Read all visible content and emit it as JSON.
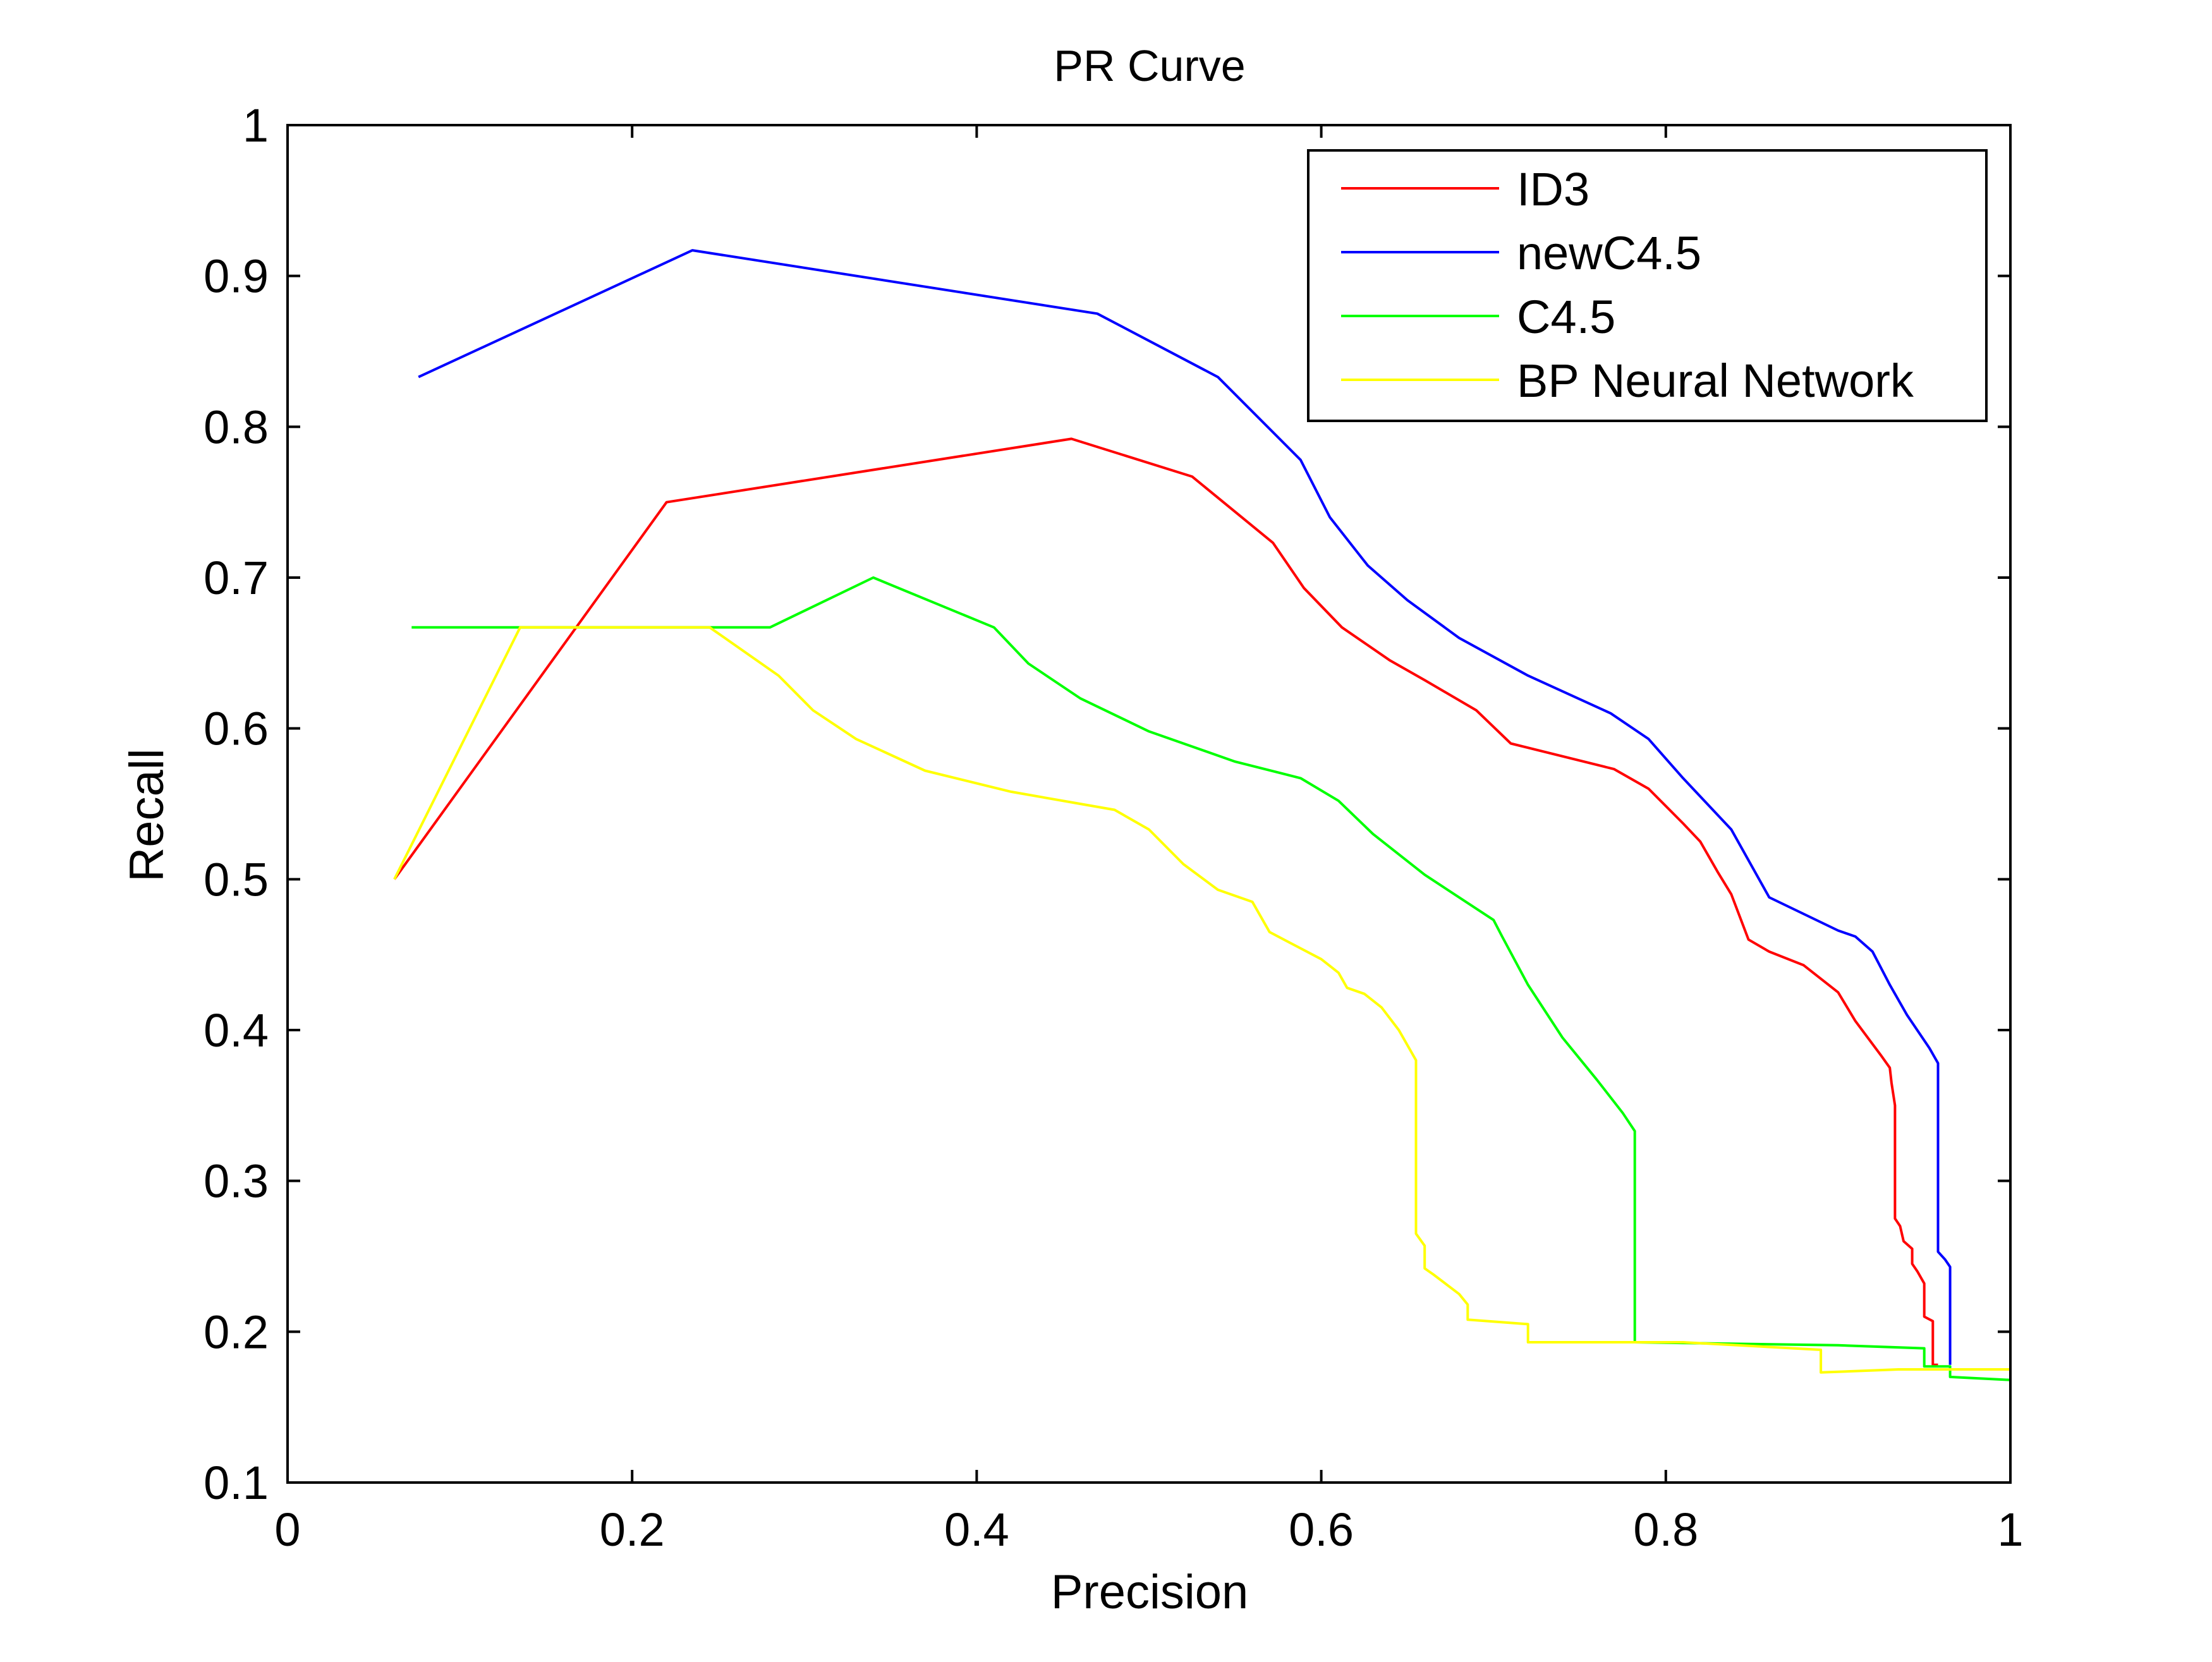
{
  "chart_data": {
    "type": "line",
    "title": "PR Curve",
    "xlabel": "Precision",
    "ylabel": "Recall",
    "xlim": [
      0,
      1
    ],
    "ylim": [
      0.1,
      1
    ],
    "x_ticks": [
      "0",
      "0.2",
      "0.4",
      "0.6",
      "0.8",
      "1"
    ],
    "y_ticks": [
      "0.1",
      "0.2",
      "0.3",
      "0.4",
      "0.5",
      "0.6",
      "0.7",
      "0.8",
      "0.9",
      "1"
    ],
    "grid": false,
    "legend_position": "top-right",
    "series": [
      {
        "name": "ID3",
        "color": "#ff0000",
        "points": [
          [
            0.062,
            0.5
          ],
          [
            0.22,
            0.75
          ],
          [
            0.455,
            0.792
          ],
          [
            0.525,
            0.767
          ],
          [
            0.572,
            0.723
          ],
          [
            0.59,
            0.693
          ],
          [
            0.612,
            0.667
          ],
          [
            0.64,
            0.645
          ],
          [
            0.66,
            0.632
          ],
          [
            0.69,
            0.612
          ],
          [
            0.71,
            0.59
          ],
          [
            0.77,
            0.573
          ],
          [
            0.79,
            0.56
          ],
          [
            0.81,
            0.537
          ],
          [
            0.82,
            0.525
          ],
          [
            0.83,
            0.505
          ],
          [
            0.838,
            0.49
          ],
          [
            0.848,
            0.46
          ],
          [
            0.86,
            0.452
          ],
          [
            0.88,
            0.443
          ],
          [
            0.9,
            0.425
          ],
          [
            0.91,
            0.406
          ],
          [
            0.925,
            0.383
          ],
          [
            0.93,
            0.375
          ],
          [
            0.931,
            0.365
          ],
          [
            0.933,
            0.35
          ],
          [
            0.933,
            0.275
          ],
          [
            0.936,
            0.27
          ],
          [
            0.938,
            0.26
          ],
          [
            0.943,
            0.255
          ],
          [
            0.943,
            0.245
          ],
          [
            0.946,
            0.24
          ],
          [
            0.95,
            0.232
          ],
          [
            0.95,
            0.21
          ],
          [
            0.955,
            0.207
          ],
          [
            0.955,
            0.178
          ],
          [
            0.958,
            0.178
          ]
        ]
      },
      {
        "name": "newC4.5",
        "color": "#0000ff",
        "points": [
          [
            0.076,
            0.833
          ],
          [
            0.235,
            0.917
          ],
          [
            0.47,
            0.875
          ],
          [
            0.54,
            0.833
          ],
          [
            0.588,
            0.778
          ],
          [
            0.605,
            0.74
          ],
          [
            0.627,
            0.708
          ],
          [
            0.65,
            0.685
          ],
          [
            0.68,
            0.66
          ],
          [
            0.72,
            0.635
          ],
          [
            0.768,
            0.61
          ],
          [
            0.79,
            0.593
          ],
          [
            0.81,
            0.567
          ],
          [
            0.838,
            0.533
          ],
          [
            0.86,
            0.488
          ],
          [
            0.9,
            0.466
          ],
          [
            0.91,
            0.462
          ],
          [
            0.92,
            0.452
          ],
          [
            0.93,
            0.43
          ],
          [
            0.94,
            0.41
          ],
          [
            0.953,
            0.388
          ],
          [
            0.958,
            0.378
          ],
          [
            0.958,
            0.253
          ],
          [
            0.962,
            0.248
          ],
          [
            0.965,
            0.243
          ],
          [
            0.965,
            0.178
          ]
        ]
      },
      {
        "name": "C4.5",
        "color": "#00ff00",
        "points": [
          [
            0.072,
            0.667
          ],
          [
            0.28,
            0.667
          ],
          [
            0.34,
            0.7
          ],
          [
            0.41,
            0.667
          ],
          [
            0.43,
            0.643
          ],
          [
            0.46,
            0.62
          ],
          [
            0.5,
            0.598
          ],
          [
            0.55,
            0.578
          ],
          [
            0.588,
            0.567
          ],
          [
            0.61,
            0.552
          ],
          [
            0.63,
            0.53
          ],
          [
            0.66,
            0.503
          ],
          [
            0.7,
            0.473
          ],
          [
            0.705,
            0.462
          ],
          [
            0.72,
            0.43
          ],
          [
            0.74,
            0.395
          ],
          [
            0.76,
            0.367
          ],
          [
            0.775,
            0.345
          ],
          [
            0.782,
            0.333
          ],
          [
            0.782,
            0.193
          ],
          [
            0.9,
            0.191
          ],
          [
            0.95,
            0.189
          ],
          [
            0.95,
            0.177
          ],
          [
            0.965,
            0.177
          ],
          [
            0.965,
            0.17
          ],
          [
            1.0,
            0.168
          ]
        ]
      },
      {
        "name": "BP Neural Network",
        "color": "#ffff00",
        "points": [
          [
            0.062,
            0.5
          ],
          [
            0.135,
            0.667
          ],
          [
            0.245,
            0.667
          ],
          [
            0.285,
            0.635
          ],
          [
            0.305,
            0.612
          ],
          [
            0.33,
            0.593
          ],
          [
            0.37,
            0.572
          ],
          [
            0.42,
            0.558
          ],
          [
            0.46,
            0.55
          ],
          [
            0.48,
            0.546
          ],
          [
            0.5,
            0.533
          ],
          [
            0.52,
            0.51
          ],
          [
            0.54,
            0.493
          ],
          [
            0.56,
            0.485
          ],
          [
            0.57,
            0.465
          ],
          [
            0.59,
            0.453
          ],
          [
            0.6,
            0.447
          ],
          [
            0.61,
            0.438
          ],
          [
            0.615,
            0.428
          ],
          [
            0.625,
            0.424
          ],
          [
            0.635,
            0.415
          ],
          [
            0.645,
            0.4
          ],
          [
            0.655,
            0.38
          ],
          [
            0.655,
            0.265
          ],
          [
            0.66,
            0.257
          ],
          [
            0.66,
            0.242
          ],
          [
            0.665,
            0.238
          ],
          [
            0.68,
            0.225
          ],
          [
            0.685,
            0.218
          ],
          [
            0.685,
            0.208
          ],
          [
            0.72,
            0.205
          ],
          [
            0.72,
            0.193
          ],
          [
            0.81,
            0.193
          ],
          [
            0.89,
            0.188
          ],
          [
            0.89,
            0.173
          ],
          [
            0.935,
            0.175
          ],
          [
            1.0,
            0.175
          ]
        ]
      }
    ]
  }
}
